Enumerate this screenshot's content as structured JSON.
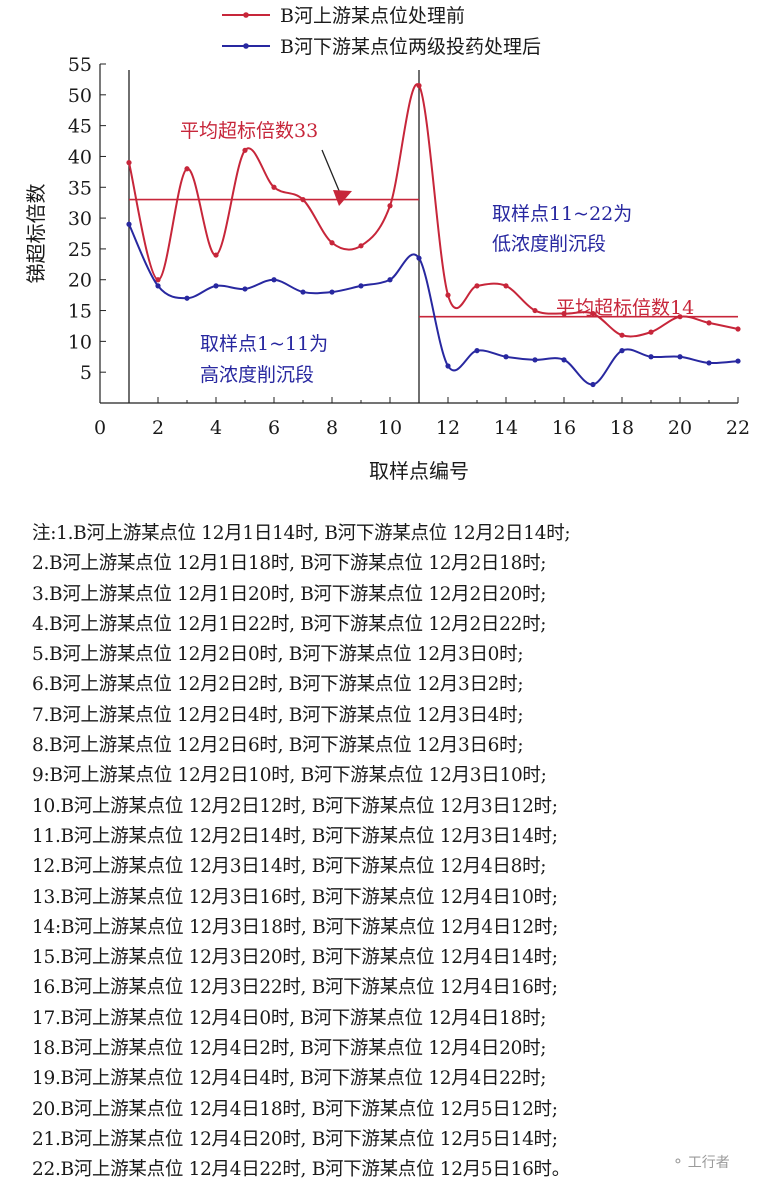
{
  "chart_data": {
    "type": "line",
    "xlabel": "取样点编号",
    "ylabel": "锑超标倍数",
    "xlim": [
      0,
      22
    ],
    "ylim": [
      0,
      55
    ],
    "xticks": [
      0,
      2,
      4,
      6,
      8,
      10,
      12,
      14,
      16,
      18,
      20,
      22
    ],
    "yticks": [
      5,
      10,
      15,
      20,
      25,
      30,
      35,
      40,
      45,
      50,
      55
    ],
    "grid": false,
    "legend_position": "top-center",
    "x": [
      1,
      2,
      3,
      4,
      5,
      6,
      7,
      8,
      9,
      10,
      11,
      12,
      13,
      14,
      15,
      16,
      17,
      18,
      19,
      20,
      21,
      22
    ],
    "series": [
      {
        "name": "B河上游某点位处理前",
        "color": "#c7263a",
        "values": [
          39,
          20,
          38,
          24,
          41,
          35,
          33,
          26,
          25.5,
          32,
          51.5,
          17.5,
          19,
          19,
          15,
          14.5,
          14.5,
          11,
          11.5,
          14,
          13,
          12
        ]
      },
      {
        "name": "B河下游某点位两级投药处理后",
        "color": "#2828a0",
        "values": [
          29,
          19,
          17,
          19,
          18.5,
          20,
          18,
          18,
          19,
          20,
          23.5,
          6,
          8.5,
          7.5,
          7,
          7,
          3,
          8.5,
          7.5,
          7.5,
          6.5,
          6.8
        ]
      }
    ],
    "reference_lines": [
      {
        "y": 33,
        "x_from": 1,
        "x_to": 11,
        "color": "#c7263a"
      },
      {
        "y": 14,
        "x_from": 11,
        "x_to": 22,
        "color": "#c7263a"
      }
    ],
    "dividers_x": [
      1,
      11
    ],
    "annotations": {
      "avg_high": "平均超标倍数33",
      "avg_low": "平均超标倍数14",
      "seg_high_line1": "取样点1~11为",
      "seg_high_line2": "高浓度削沉段",
      "seg_low_line1": "取样点11~22为",
      "seg_low_line2": "低浓度削沉段"
    },
    "annotation_colors": {
      "red": "#c7263a",
      "blue": "#2828a0"
    }
  },
  "notes": [
    "注:1.B河上游某点位 12月1日14时, B河下游某点位 12月2日14时;",
    "2.B河上游某点位 12月1日18时, B河下游某点位 12月2日18时;",
    "3.B河上游某点位 12月1日20时, B河下游某点位 12月2日20时;",
    "4.B河上游某点位 12月1日22时, B河下游某点位 12月2日22时;",
    "5.B河上游某点位 12月2日0时, B河下游某点位 12月3日0时;",
    "6.B河上游某点位 12月2日2时, B河下游某点位 12月3日2时;",
    "7.B河上游某点位 12月2日4时, B河下游某点位 12月3日4时;",
    "8.B河上游某点位 12月2日6时, B河下游某点位 12月3日6时;",
    "9:B河上游某点位 12月2日10时, B河下游某点位 12月3日10时;",
    "10.B河上游某点位 12月2日12时, B河下游某点位 12月3日12时;",
    "11.B河上游某点位 12月2日14时, B河下游某点位 12月3日14时;",
    "12.B河上游某点位 12月3日14时, B河下游某点位 12月4日8时;",
    "13.B河上游某点位 12月3日16时, B河下游某点位 12月4日10时;",
    "14:B河上游某点位 12月3日18时, B河下游某点位 12月4日12时;",
    "15.B河上游某点位 12月3日20时, B河下游某点位 12月4日14时;",
    "16.B河上游某点位 12月3日22时, B河下游某点位 12月4日16时;",
    "17.B河上游某点位 12月4日0时, B河下游某点位 12月4日18时;",
    "18.B河上游某点位 12月4日2时, B河下游某点位 12月4日20时;",
    "19.B河上游某点位 12月4日4时, B河下游某点位 12月4日22时;",
    "20.B河上游某点位 12月4日18时, B河下游某点位 12月5日12时;",
    "21.B河上游某点位 12月4日20时, B河下游某点位 12月5日14时;",
    "22.B河上游某点位 12月4日22时, B河下游某点位 12月5日16时。"
  ],
  "watermark": {
    "icon": "wechat-icon",
    "text": "工行者"
  }
}
